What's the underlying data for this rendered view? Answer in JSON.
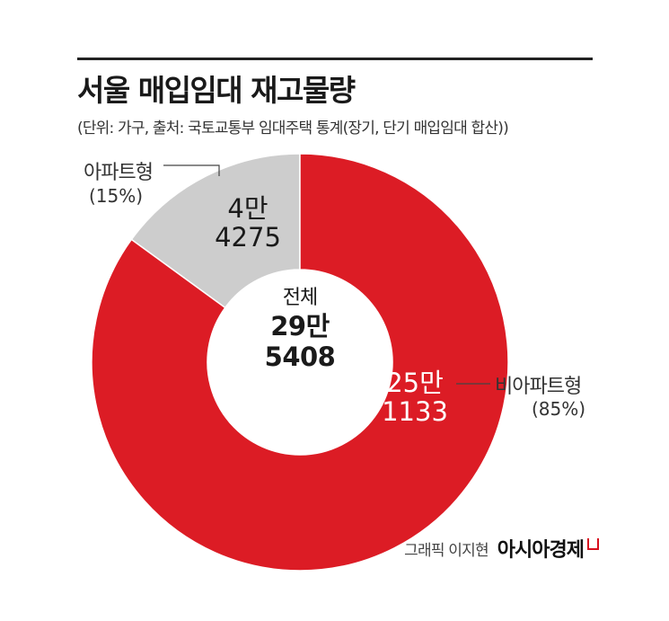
{
  "chart_data": {
    "type": "donut",
    "title": "서울 매입임대 재고물량",
    "subtitle": "(단위: 가구, 출처: 국토교통부 임대주택 통계(장기, 단기 매입임대 합산))",
    "total": {
      "label": "전체",
      "value_line1": "29만",
      "value_line2": "5408",
      "value": 295408
    },
    "segments": [
      {
        "name": "비아파트형",
        "percent_label": "(85%)",
        "value": 251133,
        "value_line1": "25만",
        "value_line2": "1133",
        "color": "#dc1c25",
        "text_color": "#ffffff"
      },
      {
        "name": "아파트형",
        "percent_label": "(15%)",
        "value": 44275,
        "value_line1": "4만",
        "value_line2": "4275",
        "color": "#cdcdcd",
        "text_color": "#1a1a1a"
      }
    ]
  },
  "credit": {
    "text": "그래픽 이지현",
    "brand": "아시아경제"
  }
}
